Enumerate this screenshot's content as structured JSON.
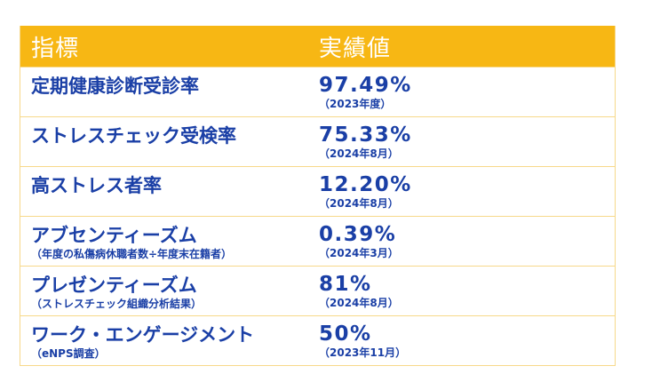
{
  "header": {
    "indicator_label": "指標",
    "value_label": "実績値"
  },
  "rows": [
    {
      "indicator": "定期健康診断受診率",
      "note": "",
      "value": "97.49%",
      "period": "（2023年度）"
    },
    {
      "indicator": "ストレスチェック受検率",
      "note": "",
      "value": "75.33%",
      "period": "（2024年8月）"
    },
    {
      "indicator": "高ストレス者率",
      "note": "",
      "value": "12.20%",
      "period": "（2024年8月）"
    },
    {
      "indicator": "アブセンティーズム",
      "note": "（年度の私傷病休職者数÷年度末在籍者）",
      "value": "0.39%",
      "period": "（2024年3月）"
    },
    {
      "indicator": "プレゼンティーズム",
      "note": "（ストレスチェック組織分析結果）",
      "value": "81%",
      "period": "（2024年8月）"
    },
    {
      "indicator": "ワーク・エンゲージメント",
      "note": "（eNPS調査）",
      "value": "50%",
      "period": "（2023年11月）"
    }
  ],
  "colors": {
    "header_bg": "#f7b714",
    "header_text": "#ffffff",
    "body_text": "#1a3fa6",
    "border": "#f7d98a"
  }
}
